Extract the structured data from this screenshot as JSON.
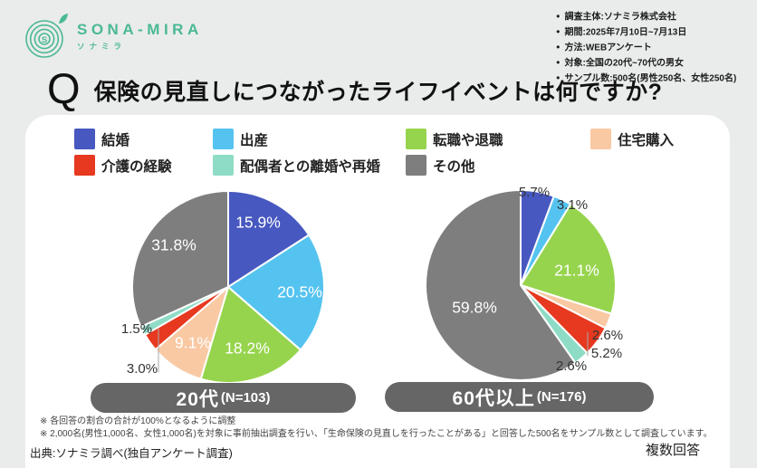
{
  "logo": {
    "name": "SONA-MIRA",
    "subname": "ソナミラ",
    "brand_color": "#4BB896"
  },
  "survey_meta": {
    "items": [
      "調査主体:ソナミラ株式会社",
      "期間:2025年7月10日~7月13日",
      "方法:WEBアンケート",
      "対象:全国の20代~70代の男女",
      "サンプル数:500名(男性250名、女性250名)"
    ]
  },
  "question": {
    "prefix": "Q",
    "text": "保険の見直しにつながったライフイベントは何ですか?"
  },
  "legend": {
    "items": [
      {
        "label": "結婚",
        "color": "#4758C0"
      },
      {
        "label": "出産",
        "color": "#55C3EF"
      },
      {
        "label": "転職や退職",
        "color": "#97D44E"
      },
      {
        "label": "住宅購入",
        "color": "#F9C9A4"
      },
      {
        "label": "介護の経験",
        "color": "#E6391F"
      },
      {
        "label": "配偶者との離婚や再婚",
        "color": "#8EDCC6"
      },
      {
        "label": "その他",
        "color": "#7E7E7E"
      }
    ]
  },
  "chart_data": [
    {
      "type": "pie",
      "group": "20代",
      "n_label": "(N=103)",
      "unit": "%",
      "start_angle": "top",
      "direction": "clockwise",
      "labels": [
        "結婚",
        "出産",
        "転職や退職",
        "住宅購入",
        "介護の経験",
        "配偶者との離婚や再婚",
        "その他"
      ],
      "values": [
        15.9,
        20.5,
        18.2,
        9.1,
        3.0,
        1.5,
        31.8
      ],
      "colors": [
        "#4758C0",
        "#55C3EF",
        "#97D44E",
        "#F9C9A4",
        "#E6391F",
        "#8EDCC6",
        "#7E7E7E"
      ]
    },
    {
      "type": "pie",
      "group": "60代以上",
      "n_label": "(N=176)",
      "unit": "%",
      "start_angle": "top",
      "direction": "clockwise",
      "labels": [
        "結婚",
        "出産",
        "転職や退職",
        "住宅購入",
        "介護の経験",
        "配偶者との離婚や再婚",
        "その他"
      ],
      "values": [
        5.7,
        3.1,
        21.1,
        2.6,
        5.2,
        2.6,
        59.8
      ],
      "colors": [
        "#4758C0",
        "#55C3EF",
        "#97D44E",
        "#F9C9A4",
        "#E6391F",
        "#8EDCC6",
        "#7E7E7E"
      ]
    }
  ],
  "notes": [
    "※ 各回答の割合の合計が100%となるように調整",
    "※ 2,000名(男性1,000名、女性1,000名)を対象に事前抽出調査を行い、「生命保険の見直しを行ったことがある」と回答した500名をサンプル数として調査しています。"
  ],
  "source": "出典:ソナミラ調べ(独自アンケート調査)",
  "answer_type": "複数回答"
}
